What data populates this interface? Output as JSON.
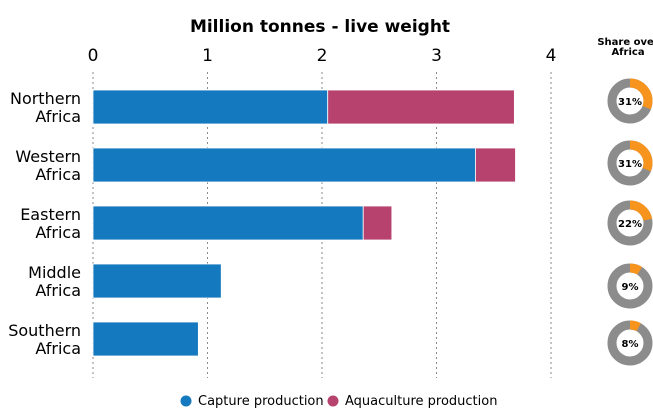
{
  "chart_data": {
    "type": "bar",
    "orientation": "horizontal",
    "stacked": true,
    "title": "Million tonnes - live weight",
    "categories": [
      [
        "Northern",
        "Africa"
      ],
      [
        "Western",
        "Africa"
      ],
      [
        "Eastern",
        "Africa"
      ],
      [
        "Middle",
        "Africa"
      ],
      [
        "Southern",
        "Africa"
      ]
    ],
    "series": [
      {
        "name": "Capture production",
        "color": "#1479be",
        "values": [
          2.05,
          3.34,
          2.36,
          1.12,
          0.92
        ]
      },
      {
        "name": "Aquaculture production",
        "color": "#b8426e",
        "values": [
          1.63,
          0.35,
          0.25,
          0.0,
          0.0
        ]
      }
    ],
    "xlim": [
      0,
      4
    ],
    "xticks": [
      "0",
      "1",
      "2",
      "3",
      "4"
    ],
    "grid": "vertical dashed",
    "legend_position": "bottom",
    "share": {
      "title": [
        "Share over",
        "Africa"
      ],
      "values": [
        31,
        31,
        22,
        9,
        8
      ],
      "labels": [
        "31%",
        "31%",
        "22%",
        "9%",
        "8%"
      ],
      "fill_color": "#f7941d",
      "rest_color": "#8c8c8c"
    }
  }
}
